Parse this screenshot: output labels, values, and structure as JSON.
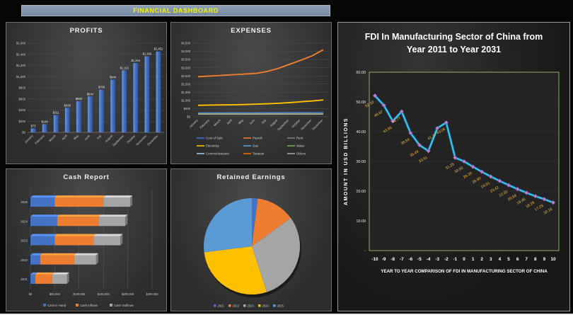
{
  "banner": {
    "title": "FINANCIAL DASHBOARD"
  },
  "chart_data": [
    {
      "id": "profits",
      "type": "bar",
      "title": "PROFITS",
      "categories": [
        "January",
        "February",
        "March",
        "April",
        "May",
        "June",
        "July",
        "August",
        "September",
        "October",
        "November",
        "December"
      ],
      "values": [
        73,
        149,
        311,
        438,
        560,
        644,
        766,
        944,
        1113,
        1244,
        1366,
        1451
      ],
      "value_labels": [
        "$73",
        "$149",
        "$311",
        "$438",
        "$560",
        "$644",
        "$766",
        "$944",
        "$1,113",
        "$1,244",
        "$1,366",
        "$1,451"
      ],
      "ylim": [
        0,
        1600
      ],
      "ytick_step": 200,
      "ytick_labels": [
        "$0",
        "$200",
        "$400",
        "$600",
        "$800",
        "$1,000",
        "$1,200",
        "$1,400",
        "$1,600"
      ],
      "bar_color": "#4472c4",
      "grid": true
    },
    {
      "id": "expenses",
      "type": "line",
      "title": "EXPENSES",
      "categories": [
        "January",
        "February",
        "March",
        "April",
        "May",
        "June",
        "July",
        "August",
        "September",
        "October",
        "November",
        "December"
      ],
      "series": [
        {
          "name": "Cost of Sale",
          "color": "#4472c4",
          "values": [
            250,
            252,
            254,
            256,
            258,
            260,
            262,
            264,
            266,
            268,
            272,
            276
          ]
        },
        {
          "name": "Payroll",
          "color": "#ed7d31",
          "values": [
            2450,
            2490,
            2530,
            2570,
            2610,
            2650,
            2760,
            2950,
            3200,
            3450,
            3720,
            4100
          ]
        },
        {
          "name": "Rent",
          "color": "#7f7f7f",
          "values": [
            180,
            180,
            180,
            180,
            180,
            180,
            180,
            180,
            180,
            180,
            180,
            180
          ]
        },
        {
          "name": "Electricity",
          "color": "#ffc000",
          "values": [
            700,
            715,
            725,
            735,
            750,
            770,
            795,
            825,
            865,
            915,
            965,
            1030
          ]
        },
        {
          "name": "Gas",
          "color": "#5b9bd5",
          "values": [
            215,
            215,
            215,
            215,
            215,
            215,
            215,
            215,
            215,
            215,
            215,
            215
          ]
        },
        {
          "name": "Water",
          "color": "#70ad47",
          "values": [
            195,
            195,
            195,
            195,
            195,
            195,
            195,
            195,
            195,
            195,
            195,
            195
          ]
        },
        {
          "name": "Communications",
          "color": "#9dc3e6",
          "values": [
            170,
            170,
            170,
            170,
            170,
            170,
            170,
            170,
            170,
            170,
            170,
            170
          ]
        },
        {
          "name": "Taxation",
          "color": "#e36c09",
          "values": [
            160,
            160,
            160,
            160,
            160,
            160,
            160,
            160,
            160,
            160,
            160,
            160
          ]
        },
        {
          "name": "Others",
          "color": "#a5a5a5",
          "values": [
            150,
            150,
            150,
            150,
            150,
            150,
            150,
            150,
            150,
            150,
            150,
            150
          ]
        }
      ],
      "ylim": [
        0,
        4500
      ],
      "ytick_step": 500,
      "ytick_labels": [
        "$0",
        "$500",
        "$1,000",
        "$1,500",
        "$2,000",
        "$2,500",
        "$3,000",
        "$3,500",
        "$4,000",
        "$4,500"
      ],
      "legend_position": "bottom",
      "grid": true
    },
    {
      "id": "cash_report",
      "type": "bar-horizontal-stacked-3d",
      "title": "Cash Report",
      "categories": [
        "2025",
        "2024",
        "2023",
        "2022",
        "2021"
      ],
      "series": [
        {
          "name": "Cash in Hand",
          "color": "#4472c4",
          "values": [
            50000,
            55000,
            50000,
            20000,
            10000
          ]
        },
        {
          "name": "Cash Inflows",
          "color": "#ed7d31",
          "values": [
            100000,
            85000,
            80000,
            70000,
            35000
          ]
        },
        {
          "name": "Cash Outflows",
          "color": "#a5a5a5",
          "values": [
            55000,
            55000,
            55000,
            45000,
            30000
          ]
        }
      ],
      "xlim": [
        0,
        250000
      ],
      "xtick_step": 50000,
      "xtick_labels": [
        "$0",
        "$50,000",
        "$100,000",
        "$150,000",
        "$200,000",
        "$250,000"
      ],
      "legend_position": "bottom",
      "grid": true
    },
    {
      "id": "retained_earnings",
      "type": "pie",
      "title": "Retained Earnings",
      "labels": [
        "2021",
        "2022",
        "2023",
        "2024",
        "2025"
      ],
      "values": [
        2,
        13,
        30,
        28,
        27
      ],
      "colors": [
        "#4472c4",
        "#ed7d31",
        "#a5a5a5",
        "#ffc000",
        "#5b9bd5"
      ],
      "legend_position": "bottom"
    },
    {
      "id": "fdi",
      "type": "line",
      "title": "FDI In Manufacturing Sector of China from Year 2011 to Year 2031",
      "x": [
        -10,
        -9,
        -8,
        -7,
        -6,
        -5,
        -4,
        -3,
        -2,
        -1,
        0,
        1,
        2,
        3,
        4,
        5,
        6,
        7,
        8,
        9,
        10
      ],
      "values": [
        52.1,
        48.87,
        43.55,
        46.77,
        39.54,
        35.49,
        33.51,
        41.17,
        43.06,
        31.25,
        30.0,
        28.2,
        26.5,
        24.91,
        23.42,
        22.02,
        20.69,
        19.45,
        18.29,
        17.29,
        16.16
      ],
      "value_labels": [
        "52.10",
        "48.87",
        "43.55",
        "46.77",
        "39.54",
        "35.49",
        "33.51",
        "41.17",
        "43.06",
        "31.25",
        "30.00",
        "28.20",
        "26.50",
        "24.91",
        "23.42",
        "22.02",
        "20.69",
        "19.45",
        "18.29",
        "17.29",
        "16.16"
      ],
      "ylim": [
        0,
        60
      ],
      "ytick_labels": [
        "60.00",
        "50.00",
        "40.00",
        "30.00",
        "20.00",
        "10.00",
        "-"
      ],
      "xlabel": "YEAR TO YEAR COMPARISON OF FDI IN MANUFACTURING SECTOR OF CHINA",
      "ylabel": "AMOUNT IN USD BILLIONS",
      "line_color": "#41c7ef",
      "line_shadow_color": "#15688c",
      "marker_color": "#b987cf",
      "marker_edge_color": "#7e4f9e",
      "label_color": "#ffbf3f",
      "plot_border_color": "#8fae6a",
      "grid": true
    }
  ],
  "colors": {
    "page_background": "#060606",
    "banner_background": "#8094ad",
    "banner_text": "#f2f200",
    "panel_background": "#3a3a3a",
    "axis_text": "#c9c9c9"
  }
}
